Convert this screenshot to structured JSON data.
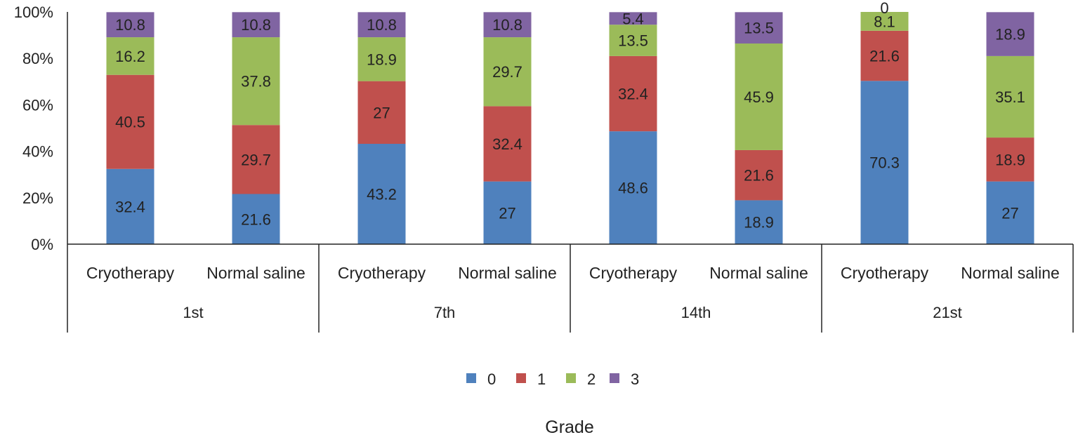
{
  "chart_data": {
    "type": "stacked_bar_100",
    "title": "",
    "xlabel": "Grade",
    "ylabel": "",
    "ylim": [
      0,
      100
    ],
    "y_ticks": [
      "0%",
      "20%",
      "40%",
      "60%",
      "80%",
      "100%"
    ],
    "y_tick_values": [
      0,
      20,
      40,
      60,
      80,
      100
    ],
    "groups": [
      "1st",
      "7th",
      "14th",
      "21st"
    ],
    "categories": [
      "Cryotherapy",
      "Normal saline",
      "Cryotherapy",
      "Normal saline",
      "Cryotherapy",
      "Normal saline",
      "Cryotherapy",
      "Normal saline"
    ],
    "series": [
      {
        "name": "0",
        "color": "#4f81bd",
        "values": [
          32.4,
          21.6,
          43.2,
          27,
          48.6,
          18.9,
          70.3,
          27
        ],
        "labels": [
          "32.4",
          "21.6",
          "43.2",
          "27",
          "48.6",
          "18.9",
          "70.3",
          "27"
        ]
      },
      {
        "name": "1",
        "color": "#c0504d",
        "values": [
          40.5,
          29.7,
          27,
          32.4,
          32.4,
          21.6,
          21.6,
          18.9
        ],
        "labels": [
          "40.5",
          "29.7",
          "27",
          "32.4",
          "32.4",
          "21.6",
          "21.6",
          "18.9"
        ]
      },
      {
        "name": "2",
        "color": "#9bbb59",
        "values": [
          16.2,
          37.8,
          18.9,
          29.7,
          13.5,
          45.9,
          8.1,
          35.1
        ],
        "labels": [
          "16.2",
          "37.8",
          "18.9",
          "29.7",
          "13.5",
          "45.9",
          "8.1",
          "35.1"
        ]
      },
      {
        "name": "3",
        "color": "#8064a2",
        "values": [
          10.8,
          10.8,
          10.8,
          10.8,
          5.4,
          13.5,
          0,
          18.9
        ],
        "labels": [
          "10.8",
          "10.8",
          "10.8",
          "10.8",
          "5.4",
          "13.5",
          "0",
          "18.9"
        ]
      }
    ],
    "legend": {
      "placement": "bottom",
      "entries": [
        "0",
        "1",
        "2",
        "3"
      ]
    },
    "grid": false
  }
}
